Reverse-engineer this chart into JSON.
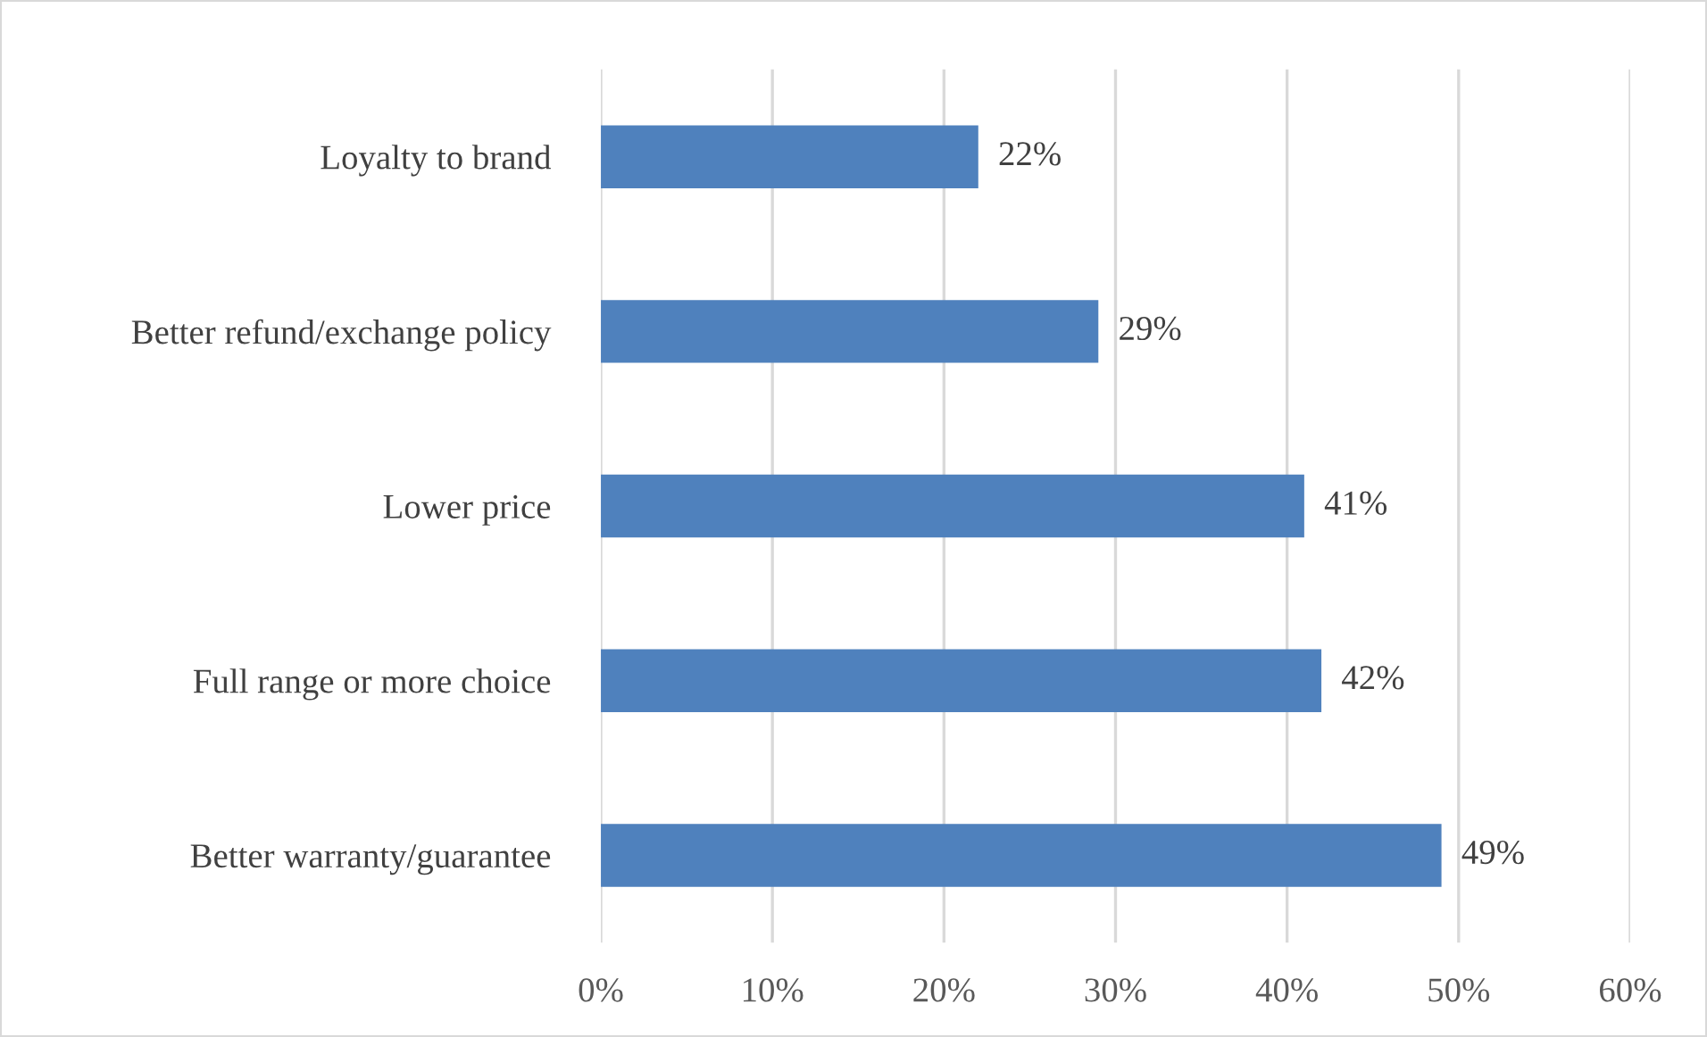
{
  "chart_data": {
    "type": "bar",
    "orientation": "horizontal",
    "categories": [
      "Loyalty to brand",
      "Better refund/exchange policy",
      "Lower price",
      "Full range or more choice",
      "Better warranty/guarantee"
    ],
    "values": [
      22,
      29,
      41,
      42,
      49
    ],
    "value_labels": [
      "22%",
      "29%",
      "41%",
      "42%",
      "49%"
    ],
    "color": "#4f81bd",
    "xlim": [
      0,
      60
    ],
    "xticks": [
      {
        "value": 0,
        "label": "0%"
      },
      {
        "value": 10,
        "label": "10%"
      },
      {
        "value": 20,
        "label": "20%"
      },
      {
        "value": 30,
        "label": "30%"
      },
      {
        "value": 40,
        "label": "40%"
      },
      {
        "value": 50,
        "label": "50%"
      },
      {
        "value": 60,
        "label": "60%"
      }
    ],
    "grid": "x",
    "legend": false
  }
}
